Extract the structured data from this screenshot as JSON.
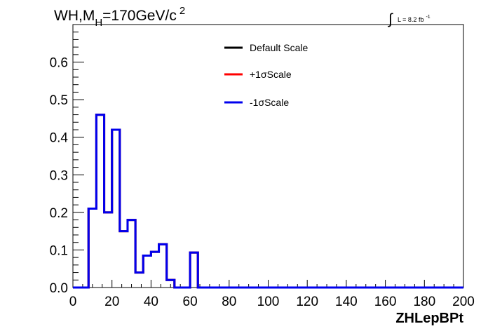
{
  "title": {
    "process": "WH,M",
    "sub": "H",
    "mass": "=170GeV/c",
    "sup": "2"
  },
  "luminosity": {
    "integral": "∫",
    "text": "L = 8.2 fb",
    "sup": "-1"
  },
  "chart_data": {
    "type": "line",
    "xlabel": "ZHLepBPt",
    "xlim": [
      0,
      200
    ],
    "ylim": [
      0,
      0.7
    ],
    "xticks": [
      0,
      20,
      40,
      60,
      80,
      100,
      120,
      140,
      160,
      180,
      200
    ],
    "yticks": [
      0.0,
      0.1,
      0.2,
      0.3,
      0.4,
      0.5,
      0.6
    ],
    "ytick_labels": [
      "0.0",
      "0.1",
      "0.2",
      "0.3",
      "0.4",
      "0.5",
      "0.6"
    ],
    "bin_edges": [
      0,
      4,
      8,
      12,
      16,
      20,
      24,
      28,
      32,
      36,
      40,
      44,
      48,
      52,
      56,
      60,
      64,
      68,
      72,
      76,
      80,
      84,
      88,
      92,
      96,
      100,
      104,
      108,
      112,
      116,
      120,
      124,
      128,
      132,
      136,
      140,
      144,
      148,
      152,
      156,
      160,
      164,
      168,
      172,
      176,
      180,
      184,
      188,
      192,
      196,
      200
    ],
    "series": [
      {
        "name": "Default Scale",
        "color": "#000000",
        "values": [
          0,
          0,
          0.21,
          0.46,
          0.2,
          0.42,
          0.15,
          0.18,
          0.04,
          0.085,
          0.095,
          0.115,
          0.02,
          0,
          0,
          0.093,
          0,
          0,
          0,
          0,
          0,
          0,
          0,
          0,
          0,
          0,
          0,
          0,
          0,
          0,
          0,
          0,
          0,
          0,
          0,
          0,
          0,
          0,
          0,
          0,
          0,
          0,
          0,
          0,
          0,
          0,
          0,
          0,
          0,
          0
        ]
      },
      {
        "name": "+1σScale",
        "color": "#ff0000",
        "values": [
          0,
          0,
          0.21,
          0.46,
          0.2,
          0.42,
          0.15,
          0.18,
          0.04,
          0.085,
          0.095,
          0.115,
          0.02,
          0,
          0,
          0.093,
          0,
          0,
          0,
          0,
          0,
          0,
          0,
          0,
          0,
          0,
          0,
          0,
          0,
          0,
          0,
          0,
          0,
          0,
          0,
          0,
          0,
          0,
          0,
          0,
          0,
          0,
          0,
          0,
          0,
          0,
          0,
          0,
          0,
          0
        ]
      },
      {
        "name": "-1σScale",
        "color": "#0000ee",
        "values": [
          0,
          0,
          0.21,
          0.46,
          0.2,
          0.42,
          0.15,
          0.18,
          0.04,
          0.085,
          0.095,
          0.115,
          0.02,
          0,
          0,
          0.093,
          0,
          0,
          0,
          0,
          0,
          0,
          0,
          0,
          0,
          0,
          0,
          0,
          0,
          0,
          0,
          0,
          0,
          0,
          0,
          0,
          0,
          0,
          0,
          0,
          0,
          0,
          0,
          0,
          0,
          0,
          0,
          0,
          0,
          0
        ]
      }
    ],
    "legend_position": "top-center",
    "grid": false
  }
}
